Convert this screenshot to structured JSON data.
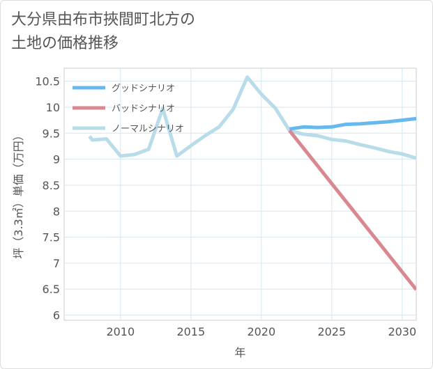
{
  "title_lines": [
    "大分県由布市挾間町北方の",
    "土地の価格推移"
  ],
  "colors": {
    "good": "#68b8f0",
    "bad": "#d98890",
    "normal": "#b8dcea",
    "grid": "#d6e6f0",
    "text": "#555555"
  },
  "chart_data": {
    "type": "line",
    "title": "大分県由布市挾間町北方の土地の価格推移",
    "xlabel": "年",
    "ylabel": "坪（3.3㎡）単価（万円）",
    "xlim": [
      2006,
      2031
    ],
    "ylim": [
      5.9,
      10.75
    ],
    "xticks": [
      2010,
      2015,
      2020,
      2025,
      2030
    ],
    "yticks": [
      6,
      6.5,
      7,
      7.5,
      8,
      8.5,
      9,
      9.5,
      10,
      10.5
    ],
    "ytick_labels": [
      "6",
      "6.5",
      "7",
      "7.5",
      "8",
      "8.5",
      "9",
      "9.5",
      "10",
      "10.5"
    ],
    "legend_position": "top-left",
    "series": [
      {
        "name": "グッドシナリオ",
        "color_key": "good",
        "x": [
          2022,
          2023,
          2024,
          2025,
          2026,
          2027,
          2028,
          2029,
          2030,
          2031
        ],
        "y": [
          9.58,
          9.62,
          9.61,
          9.62,
          9.67,
          9.68,
          9.7,
          9.72,
          9.75,
          9.78
        ]
      },
      {
        "name": "バッドシナリオ",
        "color_key": "bad",
        "x": [
          2022,
          2031
        ],
        "y": [
          9.55,
          6.49
        ]
      },
      {
        "name": "ノーマルシナリオ",
        "color_key": "normal",
        "x": [
          2007.8,
          2008,
          2009,
          2010,
          2011,
          2012,
          2013,
          2014,
          2015,
          2016,
          2017,
          2018,
          2019,
          2020,
          2021,
          2022,
          2023,
          2024,
          2025,
          2026,
          2027,
          2028,
          2029,
          2030,
          2031
        ],
        "y": [
          9.44,
          9.37,
          9.39,
          9.06,
          9.09,
          9.19,
          9.98,
          9.06,
          9.26,
          9.45,
          9.62,
          9.96,
          10.58,
          10.25,
          9.98,
          9.55,
          9.48,
          9.45,
          9.38,
          9.35,
          9.28,
          9.22,
          9.15,
          9.1,
          9.02
        ]
      }
    ]
  }
}
